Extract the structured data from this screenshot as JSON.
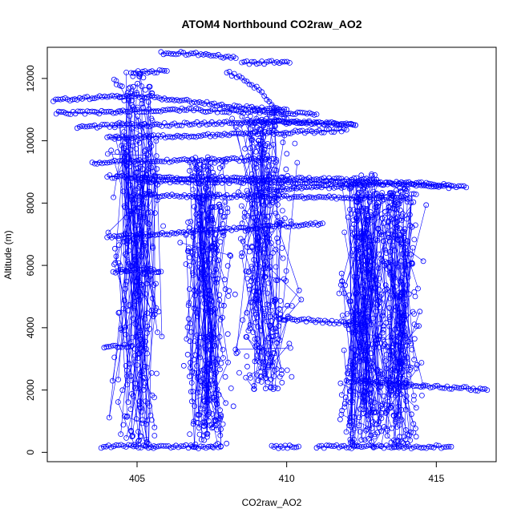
{
  "chart_data": {
    "type": "scatter",
    "title": "ATOM4 Northbound CO2raw_AO2",
    "xlabel": "CO2raw_AO2",
    "ylabel": "Altitude (m)",
    "xlim": [
      402.0,
      417.0
    ],
    "ylim": [
      -300,
      13000
    ],
    "xticks": [
      405,
      410,
      415
    ],
    "yticks": [
      0,
      2000,
      4000,
      6000,
      8000,
      10000,
      12000
    ],
    "point_color": "#0000ff",
    "marker": "open-circle",
    "connected_lines": true,
    "grid": false,
    "legend": "none",
    "clusters": [
      {
        "x_center": 405.0,
        "x_spread": 0.9,
        "y_range": [
          150,
          12200
        ]
      },
      {
        "x_center": 407.3,
        "x_spread": 0.9,
        "y_range": [
          150,
          9500
        ]
      },
      {
        "x_center": 409.3,
        "x_spread": 1.1,
        "y_range": [
          2000,
          11000
        ]
      },
      {
        "x_center": 412.6,
        "x_spread": 0.9,
        "y_range": [
          150,
          9000
        ]
      },
      {
        "x_center": 413.7,
        "x_spread": 0.9,
        "y_range": [
          150,
          8500
        ]
      }
    ],
    "series": [
      {
        "x": [
          402.2,
          403.0,
          404.0,
          405.0,
          406.0,
          407.0,
          408.0,
          409.0,
          410.0
        ],
        "y": [
          11300,
          11350,
          11400,
          11450,
          11350,
          11250,
          11100,
          11050,
          11000
        ]
      },
      {
        "x": [
          402.3,
          403.5,
          405.0,
          406.5,
          408.0,
          409.5,
          411.0
        ],
        "y": [
          10900,
          10900,
          10950,
          11000,
          10950,
          10900,
          10850
        ]
      },
      {
        "x": [
          403.0,
          404.0,
          405.0,
          406.0,
          407.0,
          408.0,
          409.0,
          410.0,
          411.0,
          412.0,
          412.3
        ],
        "y": [
          10450,
          10480,
          10500,
          10520,
          10550,
          10580,
          10600,
          10620,
          10580,
          10520,
          10500
        ]
      },
      {
        "x": [
          404.0,
          405.0,
          406.5,
          408.0,
          409.5,
          411.0,
          412.0
        ],
        "y": [
          10100,
          10120,
          10150,
          10200,
          10250,
          10300,
          10350
        ]
      },
      {
        "x": [
          403.5,
          404.5,
          405.5,
          406.5,
          407.5,
          408.5,
          409.5
        ],
        "y": [
          9300,
          9320,
          9340,
          9360,
          9380,
          9400,
          9420
        ]
      },
      {
        "x": [
          404.0,
          405.0,
          406.0,
          407.0,
          408.0,
          409.0,
          410.0,
          411.0,
          412.0,
          413.0
        ],
        "y": [
          8850,
          8830,
          8820,
          8810,
          8800,
          8790,
          8780,
          8770,
          8760,
          8750
        ]
      },
      {
        "x": [
          405.0,
          406.5,
          408.0,
          409.5,
          411.0,
          412.5,
          414.0,
          415.0,
          416.0
        ],
        "y": [
          8700,
          8690,
          8680,
          8670,
          8660,
          8650,
          8600,
          8550,
          8500
        ]
      },
      {
        "x": [
          405.0,
          406.0,
          407.0,
          408.0,
          409.0,
          410.0,
          411.0,
          412.0,
          413.0,
          414.0
        ],
        "y": [
          8250,
          8240,
          8230,
          8220,
          8210,
          8200,
          8190,
          8180,
          8170,
          8160
        ]
      },
      {
        "x": [
          404.8,
          405.5,
          406.0
        ],
        "y": [
          12200,
          12220,
          12240
        ]
      },
      {
        "x": [
          405.8,
          406.3,
          406.8,
          407.3,
          407.8,
          408.3
        ],
        "y": [
          12800,
          12810,
          12800,
          12780,
          12700,
          12650
        ]
      },
      {
        "x": [
          408.5,
          409.0,
          409.5,
          410.1
        ],
        "y": [
          12500,
          12510,
          12520,
          12500
        ]
      },
      {
        "x": [
          409.0,
          409.5,
          410.0,
          410.5,
          411.0,
          411.5,
          412.0,
          412.3
        ],
        "y": [
          10600,
          10620,
          10600,
          10580,
          10560,
          10540,
          10520,
          10500
        ]
      },
      {
        "x": [
          409.0,
          410.0,
          411.0,
          412.0,
          413.0,
          414.0,
          415.0,
          415.5
        ],
        "y": [
          8400,
          8450,
          8500,
          8550,
          8600,
          8650,
          8600,
          8550
        ]
      },
      {
        "x": [
          403.8,
          404.3,
          404.8,
          405.3,
          405.8,
          406.3,
          406.8,
          407.3,
          407.8
        ],
        "y": [
          180,
          190,
          200,
          180,
          170,
          190,
          180,
          170,
          180
        ]
      },
      {
        "x": [
          409.5,
          409.8,
          410.1,
          410.4
        ],
        "y": [
          180,
          170,
          180,
          190
        ]
      },
      {
        "x": [
          411.0,
          411.5,
          412.0,
          412.5,
          413.0,
          413.5,
          414.0,
          414.5,
          415.0,
          415.5
        ],
        "y": [
          180,
          190,
          170,
          180,
          190,
          180,
          170,
          180,
          190,
          180
        ]
      },
      {
        "x": [
          404.0,
          404.8,
          405.6,
          406.4,
          407.2,
          408.0,
          408.8,
          409.6,
          410.4,
          411.2
        ],
        "y": [
          6900,
          6950,
          7000,
          7050,
          7100,
          7150,
          7200,
          7250,
          7300,
          7350
        ]
      },
      {
        "x": [
          404.2,
          404.6,
          405.0,
          405.4,
          405.8
        ],
        "y": [
          5800,
          5820,
          5850,
          5830,
          5800
        ]
      },
      {
        "x": [
          403.9,
          404.2,
          404.5,
          404.8
        ],
        "y": [
          3400,
          3410,
          3420,
          3400
        ]
      },
      {
        "x": [
          412.0,
          412.8,
          413.6,
          414.4,
          415.2,
          416.0,
          416.7
        ],
        "y": [
          2300,
          2250,
          2200,
          2150,
          2100,
          2050,
          2000
        ]
      },
      {
        "x": [
          409.8,
          410.5,
          411.2,
          411.9,
          412.6
        ],
        "y": [
          4300,
          4250,
          4200,
          4150,
          4100
        ]
      },
      {
        "x": [
          408.0,
          408.5,
          409.0,
          409.5,
          410.0
        ],
        "y": [
          12200,
          12000,
          11700,
          11200,
          10700
        ]
      },
      {
        "x": [
          407.8,
          407.8
        ],
        "y": [
          200,
          1200
        ]
      }
    ]
  }
}
